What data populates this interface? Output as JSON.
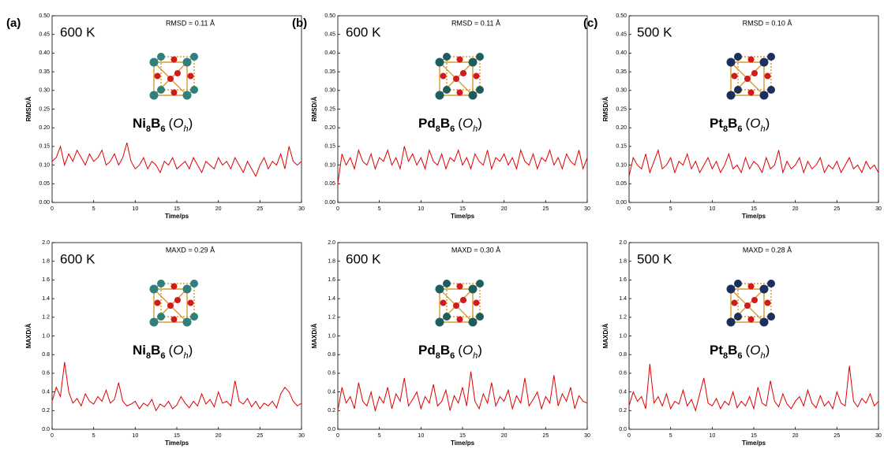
{
  "chart_data": [
    {
      "type": "line",
      "panel": "(a)",
      "temperature": "600 K",
      "metric": "RMSD = 0.11 Å",
      "molecule": [
        "Ni",
        "8",
        "B",
        "6",
        "(",
        "O",
        "h",
        ")"
      ],
      "metal_color": "#2f7f7c",
      "xlabel": "Time/ps",
      "ylabel": "RMSD/Å",
      "color": "#e00000",
      "xlim": [
        0,
        30
      ],
      "ylim": [
        0,
        0.5
      ],
      "xticks": [
        0,
        5,
        10,
        15,
        20,
        25,
        30
      ],
      "yticks": [
        {
          "value": 0,
          "label": "0.00"
        },
        0.05,
        {
          "value": 0.1,
          "label": "0.10"
        },
        0.15,
        {
          "value": 0.2,
          "label": "0.20"
        },
        0.25,
        {
          "value": 0.3,
          "label": "0.30"
        },
        0.35,
        {
          "value": 0.4,
          "label": "0.40"
        },
        0.45,
        {
          "value": 0.5,
          "label": "0.50"
        }
      ],
      "x": [
        0,
        0.5,
        1,
        1.5,
        2,
        2.5,
        3,
        3.5,
        4,
        4.5,
        5,
        5.5,
        6,
        6.5,
        7,
        7.5,
        8,
        8.5,
        9,
        9.5,
        10,
        10.5,
        11,
        11.5,
        12,
        12.5,
        13,
        13.5,
        14,
        14.5,
        15,
        15.5,
        16,
        16.5,
        17,
        17.5,
        18,
        18.5,
        19,
        19.5,
        20,
        20.5,
        21,
        21.5,
        22,
        22.5,
        23,
        23.5,
        24,
        24.5,
        25,
        25.5,
        26,
        26.5,
        27,
        27.5,
        28,
        28.5,
        29,
        29.5,
        30
      ],
      "values": [
        0.11,
        0.12,
        0.15,
        0.1,
        0.13,
        0.11,
        0.14,
        0.12,
        0.1,
        0.13,
        0.11,
        0.12,
        0.14,
        0.1,
        0.11,
        0.13,
        0.1,
        0.12,
        0.16,
        0.11,
        0.09,
        0.1,
        0.12,
        0.09,
        0.11,
        0.1,
        0.08,
        0.11,
        0.1,
        0.12,
        0.09,
        0.1,
        0.11,
        0.09,
        0.12,
        0.1,
        0.08,
        0.11,
        0.1,
        0.09,
        0.12,
        0.1,
        0.11,
        0.09,
        0.12,
        0.1,
        0.08,
        0.11,
        0.09,
        0.07,
        0.1,
        0.12,
        0.09,
        0.11,
        0.1,
        0.13,
        0.09,
        0.15,
        0.11,
        0.1,
        0.11
      ]
    },
    {
      "type": "line",
      "panel": "(b)",
      "temperature": "600 K",
      "metric": "RMSD = 0.11 Å",
      "molecule": [
        "Pd",
        "8",
        "B",
        "6",
        "(",
        "O",
        "h",
        ")"
      ],
      "metal_color": "#1d5e5c",
      "xlabel": "Time/ps",
      "ylabel": "RMSD/Å",
      "color": "#e00000",
      "xlim": [
        0,
        30
      ],
      "ylim": [
        0,
        0.5
      ],
      "xticks": [
        0,
        5,
        10,
        15,
        20,
        25,
        30
      ],
      "yticks": [
        {
          "value": 0,
          "label": "0.00"
        },
        0.05,
        {
          "value": 0.1,
          "label": "0.10"
        },
        0.15,
        {
          "value": 0.2,
          "label": "0.20"
        },
        0.25,
        {
          "value": 0.3,
          "label": "0.30"
        },
        0.35,
        {
          "value": 0.4,
          "label": "0.40"
        },
        0.45,
        {
          "value": 0.5,
          "label": "0.50"
        }
      ],
      "x": [
        0,
        0.5,
        1,
        1.5,
        2,
        2.5,
        3,
        3.5,
        4,
        4.5,
        5,
        5.5,
        6,
        6.5,
        7,
        7.5,
        8,
        8.5,
        9,
        9.5,
        10,
        10.5,
        11,
        11.5,
        12,
        12.5,
        13,
        13.5,
        14,
        14.5,
        15,
        15.5,
        16,
        16.5,
        17,
        17.5,
        18,
        18.5,
        19,
        19.5,
        20,
        20.5,
        21,
        21.5,
        22,
        22.5,
        23,
        23.5,
        24,
        24.5,
        25,
        25.5,
        26,
        26.5,
        27,
        27.5,
        28,
        28.5,
        29,
        29.5,
        30
      ],
      "values": [
        0.05,
        0.13,
        0.1,
        0.12,
        0.09,
        0.14,
        0.11,
        0.1,
        0.13,
        0.09,
        0.12,
        0.11,
        0.14,
        0.1,
        0.12,
        0.09,
        0.15,
        0.11,
        0.13,
        0.1,
        0.12,
        0.09,
        0.14,
        0.11,
        0.1,
        0.13,
        0.09,
        0.12,
        0.11,
        0.14,
        0.1,
        0.12,
        0.09,
        0.13,
        0.11,
        0.1,
        0.14,
        0.09,
        0.12,
        0.11,
        0.13,
        0.1,
        0.12,
        0.09,
        0.14,
        0.11,
        0.1,
        0.13,
        0.09,
        0.12,
        0.11,
        0.14,
        0.1,
        0.12,
        0.09,
        0.13,
        0.11,
        0.1,
        0.14,
        0.09,
        0.12
      ]
    },
    {
      "type": "line",
      "panel": "(c)",
      "temperature": "500 K",
      "metric": "RMSD = 0.10 Å",
      "molecule": [
        "Pt",
        "8",
        "B",
        "6",
        "(",
        "O",
        "h",
        ")"
      ],
      "metal_color": "#1b2f5e",
      "xlabel": "Time/ps",
      "ylabel": "RMSD/Å",
      "color": "#e00000",
      "xlim": [
        0,
        30
      ],
      "ylim": [
        0,
        0.5
      ],
      "xticks": [
        0,
        5,
        10,
        15,
        20,
        25,
        30
      ],
      "yticks": [
        {
          "value": 0,
          "label": "0.00"
        },
        0.05,
        {
          "value": 0.1,
          "label": "0.10"
        },
        0.15,
        {
          "value": 0.2,
          "label": "0.20"
        },
        0.25,
        {
          "value": 0.3,
          "label": "0.30"
        },
        0.35,
        {
          "value": 0.4,
          "label": "0.40"
        },
        0.45,
        {
          "value": 0.5,
          "label": "0.50"
        }
      ],
      "x": [
        0,
        0.5,
        1,
        1.5,
        2,
        2.5,
        3,
        3.5,
        4,
        4.5,
        5,
        5.5,
        6,
        6.5,
        7,
        7.5,
        8,
        8.5,
        9,
        9.5,
        10,
        10.5,
        11,
        11.5,
        12,
        12.5,
        13,
        13.5,
        14,
        14.5,
        15,
        15.5,
        16,
        16.5,
        17,
        17.5,
        18,
        18.5,
        19,
        19.5,
        20,
        20.5,
        21,
        21.5,
        22,
        22.5,
        23,
        23.5,
        24,
        24.5,
        25,
        25.5,
        26,
        26.5,
        27,
        27.5,
        28,
        28.5,
        29,
        29.5,
        30
      ],
      "values": [
        0.07,
        0.12,
        0.1,
        0.09,
        0.13,
        0.08,
        0.11,
        0.14,
        0.09,
        0.1,
        0.12,
        0.08,
        0.11,
        0.1,
        0.13,
        0.09,
        0.11,
        0.08,
        0.1,
        0.12,
        0.09,
        0.11,
        0.08,
        0.1,
        0.13,
        0.09,
        0.1,
        0.08,
        0.12,
        0.09,
        0.11,
        0.1,
        0.08,
        0.12,
        0.09,
        0.1,
        0.14,
        0.08,
        0.11,
        0.09,
        0.1,
        0.12,
        0.08,
        0.11,
        0.09,
        0.1,
        0.12,
        0.08,
        0.1,
        0.09,
        0.11,
        0.08,
        0.1,
        0.12,
        0.09,
        0.1,
        0.08,
        0.11,
        0.09,
        0.1,
        0.08
      ]
    },
    {
      "type": "line",
      "temperature": "600 K",
      "metric": "MAXD = 0.29 Å",
      "molecule": [
        "Ni",
        "8",
        "B",
        "6",
        "(",
        "O",
        "h",
        ")"
      ],
      "metal_color": "#2f7f7c",
      "xlabel": "Time/ps",
      "ylabel": "MAXD/Å",
      "color": "#e00000",
      "xlim": [
        0,
        30
      ],
      "ylim": [
        0,
        2
      ],
      "xticks": [
        0,
        5,
        10,
        15,
        20,
        25,
        30
      ],
      "yticks": [
        {
          "value": 0,
          "label": "0.0"
        },
        0.2,
        0.4,
        0.6,
        0.8,
        {
          "value": 1,
          "label": "1.0"
        },
        1.2,
        1.4,
        1.6,
        1.8,
        {
          "value": 2,
          "label": "2.0"
        }
      ],
      "x": [
        0,
        0.5,
        1,
        1.5,
        2,
        2.5,
        3,
        3.5,
        4,
        4.5,
        5,
        5.5,
        6,
        6.5,
        7,
        7.5,
        8,
        8.5,
        9,
        9.5,
        10,
        10.5,
        11,
        11.5,
        12,
        12.5,
        13,
        13.5,
        14,
        14.5,
        15,
        15.5,
        16,
        16.5,
        17,
        17.5,
        18,
        18.5,
        19,
        19.5,
        20,
        20.5,
        21,
        21.5,
        22,
        22.5,
        23,
        23.5,
        24,
        24.5,
        25,
        25.5,
        26,
        26.5,
        27,
        27.5,
        28,
        28.5,
        29,
        29.5,
        30
      ],
      "values": [
        0.3,
        0.45,
        0.35,
        0.72,
        0.4,
        0.28,
        0.33,
        0.25,
        0.38,
        0.3,
        0.27,
        0.35,
        0.3,
        0.42,
        0.28,
        0.32,
        0.5,
        0.3,
        0.25,
        0.27,
        0.3,
        0.22,
        0.28,
        0.25,
        0.32,
        0.2,
        0.27,
        0.24,
        0.3,
        0.22,
        0.26,
        0.35,
        0.28,
        0.23,
        0.3,
        0.25,
        0.38,
        0.27,
        0.32,
        0.24,
        0.4,
        0.28,
        0.3,
        0.25,
        0.52,
        0.3,
        0.27,
        0.33,
        0.24,
        0.3,
        0.22,
        0.28,
        0.25,
        0.3,
        0.23,
        0.38,
        0.45,
        0.4,
        0.3,
        0.25,
        0.28
      ]
    },
    {
      "type": "line",
      "temperature": "600 K",
      "metric": "MAXD = 0.30 Å",
      "molecule": [
        "Pd",
        "8",
        "B",
        "6",
        "(",
        "O",
        "h",
        ")"
      ],
      "metal_color": "#1d5e5c",
      "xlabel": "Time/ps",
      "ylabel": "MAXD/Å",
      "color": "#e00000",
      "xlim": [
        0,
        30
      ],
      "ylim": [
        0,
        2
      ],
      "xticks": [
        0,
        5,
        10,
        15,
        20,
        25,
        30
      ],
      "yticks": [
        {
          "value": 0,
          "label": "0.0"
        },
        0.2,
        0.4,
        0.6,
        0.8,
        {
          "value": 1,
          "label": "1.0"
        },
        1.2,
        1.4,
        1.6,
        1.8,
        {
          "value": 2,
          "label": "2.0"
        }
      ],
      "x": [
        0,
        0.5,
        1,
        1.5,
        2,
        2.5,
        3,
        3.5,
        4,
        4.5,
        5,
        5.5,
        6,
        6.5,
        7,
        7.5,
        8,
        8.5,
        9,
        9.5,
        10,
        10.5,
        11,
        11.5,
        12,
        12.5,
        13,
        13.5,
        14,
        14.5,
        15,
        15.5,
        16,
        16.5,
        17,
        17.5,
        18,
        18.5,
        19,
        19.5,
        20,
        20.5,
        21,
        21.5,
        22,
        22.5,
        23,
        23.5,
        24,
        24.5,
        25,
        25.5,
        26,
        26.5,
        27,
        27.5,
        28,
        28.5,
        29,
        29.5,
        30
      ],
      "values": [
        0.2,
        0.45,
        0.28,
        0.35,
        0.22,
        0.5,
        0.3,
        0.25,
        0.4,
        0.2,
        0.35,
        0.28,
        0.45,
        0.22,
        0.38,
        0.3,
        0.55,
        0.25,
        0.32,
        0.4,
        0.22,
        0.35,
        0.28,
        0.48,
        0.25,
        0.3,
        0.42,
        0.2,
        0.36,
        0.28,
        0.45,
        0.25,
        0.62,
        0.3,
        0.22,
        0.38,
        0.28,
        0.5,
        0.25,
        0.35,
        0.3,
        0.42,
        0.22,
        0.36,
        0.28,
        0.55,
        0.25,
        0.32,
        0.4,
        0.22,
        0.35,
        0.28,
        0.58,
        0.25,
        0.38,
        0.3,
        0.45,
        0.22,
        0.36,
        0.3,
        0.28
      ]
    },
    {
      "type": "line",
      "temperature": "500 K",
      "metric": "MAXD = 0.28 Å",
      "molecule": [
        "Pt",
        "8",
        "B",
        "6",
        "(",
        "O",
        "h",
        ")"
      ],
      "metal_color": "#1b2f5e",
      "xlabel": "Time/ps",
      "ylabel": "MAXD/Å",
      "color": "#e00000",
      "xlim": [
        0,
        30
      ],
      "ylim": [
        0,
        2
      ],
      "xticks": [
        0,
        5,
        10,
        15,
        20,
        25,
        30
      ],
      "yticks": [
        {
          "value": 0,
          "label": "0.0"
        },
        0.2,
        0.4,
        0.6,
        0.8,
        {
          "value": 1,
          "label": "1.0"
        },
        1.2,
        1.4,
        1.6,
        1.8,
        {
          "value": 2,
          "label": "2.0"
        }
      ],
      "x": [
        0,
        0.5,
        1,
        1.5,
        2,
        2.5,
        3,
        3.5,
        4,
        4.5,
        5,
        5.5,
        6,
        6.5,
        7,
        7.5,
        8,
        8.5,
        9,
        9.5,
        10,
        10.5,
        11,
        11.5,
        12,
        12.5,
        13,
        13.5,
        14,
        14.5,
        15,
        15.5,
        16,
        16.5,
        17,
        17.5,
        18,
        18.5,
        19,
        19.5,
        20,
        20.5,
        21,
        21.5,
        22,
        22.5,
        23,
        23.5,
        24,
        24.5,
        25,
        25.5,
        26,
        26.5,
        27,
        27.5,
        28,
        28.5,
        29,
        29.5,
        30
      ],
      "values": [
        0.25,
        0.4,
        0.3,
        0.35,
        0.22,
        0.7,
        0.28,
        0.35,
        0.25,
        0.38,
        0.22,
        0.3,
        0.27,
        0.42,
        0.25,
        0.32,
        0.2,
        0.38,
        0.55,
        0.28,
        0.25,
        0.33,
        0.22,
        0.3,
        0.26,
        0.4,
        0.23,
        0.3,
        0.25,
        0.35,
        0.22,
        0.45,
        0.28,
        0.25,
        0.52,
        0.3,
        0.24,
        0.38,
        0.27,
        0.22,
        0.3,
        0.35,
        0.25,
        0.42,
        0.28,
        0.23,
        0.36,
        0.25,
        0.3,
        0.22,
        0.4,
        0.28,
        0.25,
        0.68,
        0.3,
        0.24,
        0.33,
        0.28,
        0.38,
        0.25,
        0.3
      ]
    }
  ]
}
